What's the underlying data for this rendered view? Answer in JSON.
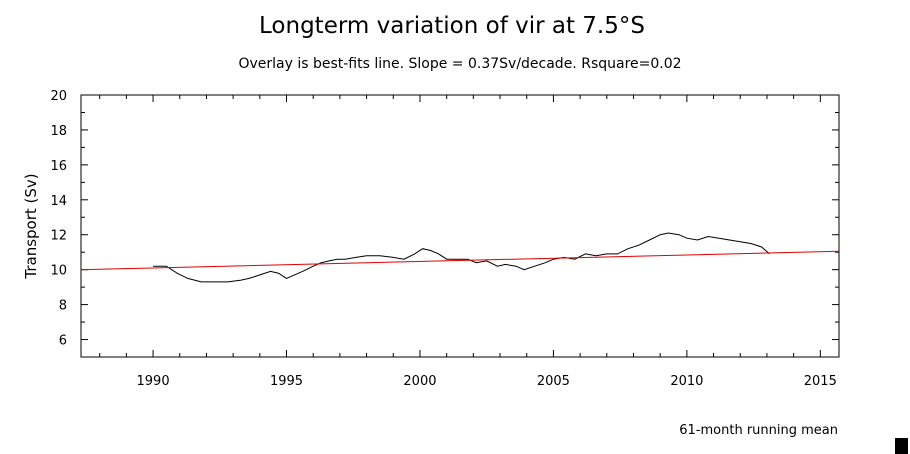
{
  "chart_data": {
    "type": "line",
    "title": "Longterm variation of vir at 7.5°S",
    "subtitle": "Overlay is best-fits line. Slope = 0.37Sv/decade. Rsquare=0.02",
    "xlabel": "",
    "ylabel": "Transport (Sv)",
    "xlim": [
      1987.3,
      2015.7
    ],
    "ylim": [
      5,
      20
    ],
    "yticks": [
      6,
      8,
      10,
      12,
      14,
      16,
      18,
      20
    ],
    "xticks": [
      1990,
      1995,
      2000,
      2005,
      2010,
      2015
    ],
    "grid": false,
    "annotation": "61-month running mean",
    "series": [
      {
        "name": "61-month running mean",
        "color": "#000000",
        "x": [
          1990.0,
          1990.5,
          1990.9,
          1991.3,
          1991.8,
          1992.3,
          1992.8,
          1993.3,
          1993.6,
          1994.0,
          1994.4,
          1994.7,
          1995.0,
          1995.3,
          1995.6,
          1996.0,
          1996.3,
          1996.6,
          1996.9,
          1997.2,
          1997.6,
          1998.0,
          1998.5,
          1999.0,
          1999.4,
          1999.8,
          2000.1,
          2000.4,
          2000.7,
          2001.0,
          2001.4,
          2001.8,
          2002.1,
          2002.5,
          2002.9,
          2003.2,
          2003.6,
          2003.9,
          2004.3,
          2004.7,
          2005.0,
          2005.4,
          2005.8,
          2006.2,
          2006.6,
          2007.0,
          2007.4,
          2007.8,
          2008.2,
          2008.6,
          2009.0,
          2009.3,
          2009.7,
          2010.0,
          2010.4,
          2010.8,
          2011.2,
          2011.6,
          2012.0,
          2012.4,
          2012.8,
          2013.1
        ],
        "values": [
          10.2,
          10.2,
          9.8,
          9.5,
          9.3,
          9.3,
          9.3,
          9.4,
          9.5,
          9.7,
          9.9,
          9.8,
          9.5,
          9.7,
          9.9,
          10.2,
          10.4,
          10.5,
          10.6,
          10.6,
          10.7,
          10.8,
          10.8,
          10.7,
          10.6,
          10.9,
          11.2,
          11.1,
          10.9,
          10.6,
          10.6,
          10.6,
          10.4,
          10.5,
          10.2,
          10.3,
          10.2,
          10.0,
          10.2,
          10.4,
          10.6,
          10.7,
          10.6,
          10.9,
          10.8,
          10.9,
          10.9,
          11.2,
          11.4,
          11.7,
          12.0,
          12.1,
          12.0,
          11.8,
          11.7,
          11.9,
          11.8,
          11.7,
          11.6,
          11.5,
          11.3,
          10.9
        ]
      },
      {
        "name": "best-fit line",
        "color": "#e00000",
        "x": [
          1987.3,
          2015.7
        ],
        "values": [
          10.0,
          11.05
        ]
      }
    ]
  }
}
